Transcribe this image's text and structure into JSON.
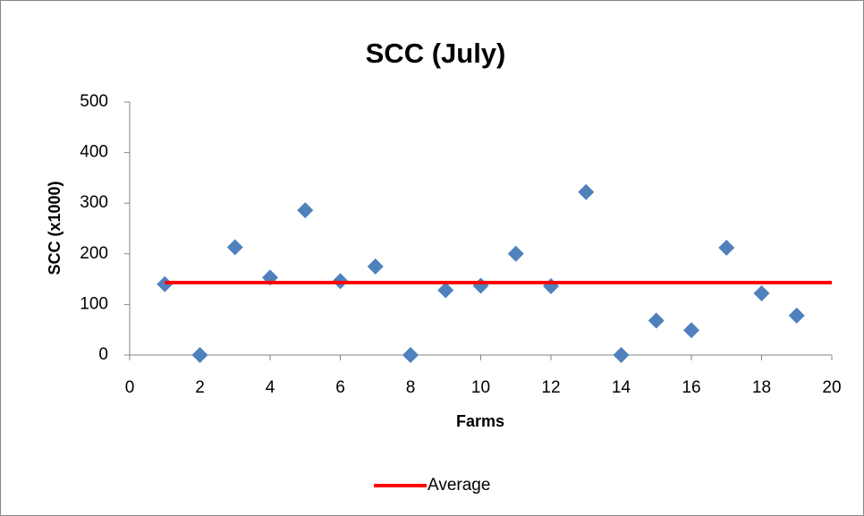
{
  "chart_data": {
    "type": "scatter",
    "title": "SCC (July)",
    "x_label": "Farms",
    "y_label": "SCC (x1000)",
    "xlim": [
      0,
      20
    ],
    "xticks": [
      0,
      2,
      4,
      6,
      8,
      10,
      12,
      14,
      16,
      18,
      20
    ],
    "ylim": [
      0,
      500
    ],
    "yticks": [
      0,
      100,
      200,
      300,
      400,
      500
    ],
    "grid": false,
    "legend": "bottom",
    "series": [
      {
        "style": "markers",
        "color": "#4f81bd",
        "x": [
          1,
          2,
          3,
          4,
          5,
          6,
          7,
          8,
          9,
          10,
          11,
          12,
          13,
          14,
          15,
          16,
          17,
          18,
          19
        ],
        "values": [
          140,
          0,
          213,
          153,
          286,
          146,
          175,
          0,
          128,
          137,
          200,
          136,
          322,
          0,
          68,
          49,
          212,
          122,
          78
        ]
      },
      {
        "name": "Average",
        "style": "line",
        "color": "#ff0000",
        "x": [
          1,
          20
        ],
        "values": [
          143,
          143
        ]
      }
    ]
  }
}
